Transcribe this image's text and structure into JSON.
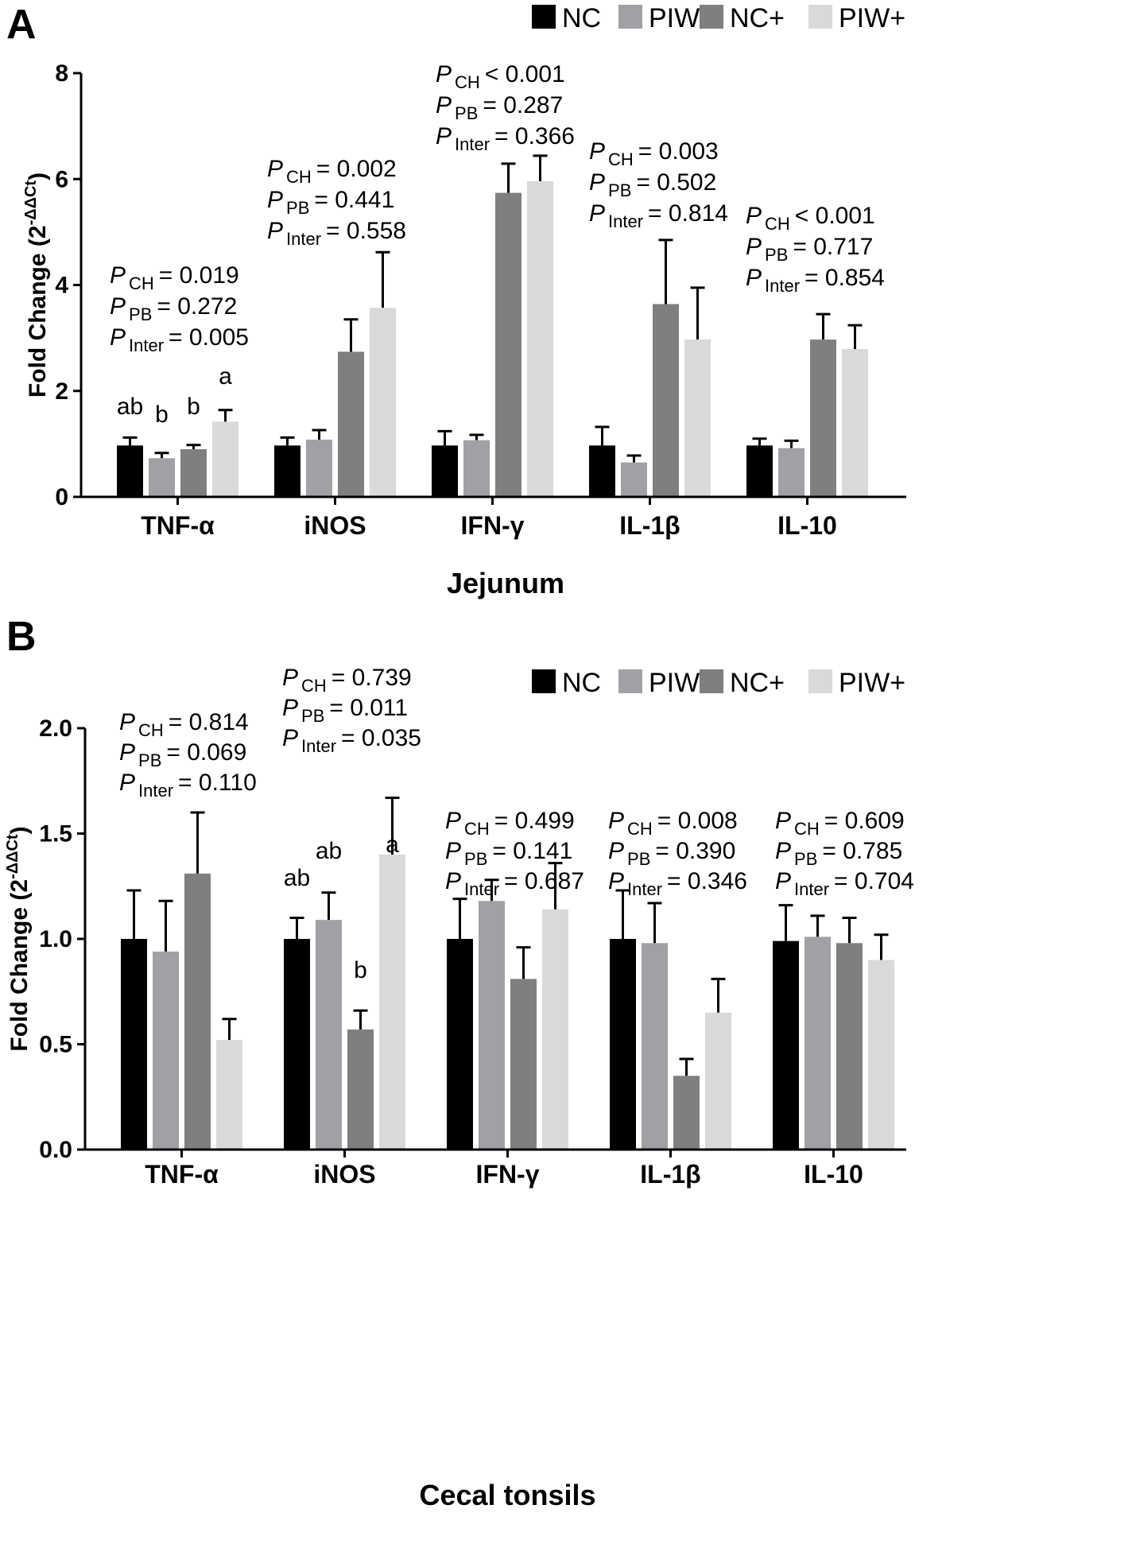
{
  "figure": {
    "series_names": [
      "NC",
      "PIW",
      "NC+",
      "PIW+"
    ],
    "series_colors": [
      "#000000",
      "#a0a0a5",
      "#7f7f7f",
      "#d9d9d9"
    ]
  },
  "chart_data": [
    {
      "type": "bar",
      "panel_letter": "A",
      "title": "",
      "xlabel": "Jejunum",
      "ylabel_main": "Fold Change (2",
      "ylabel_sup": "-ΔΔCt",
      "ylabel_close": ")",
      "legend_position": "top-right",
      "ylim": [
        0,
        8
      ],
      "yticks": [
        0,
        2,
        4,
        6,
        8
      ],
      "ytick_labels": [
        "0",
        "2",
        "4",
        "6",
        "8"
      ],
      "categories": [
        "TNF-α",
        "iNOS",
        "IFN-γ",
        "IL-1β",
        "IL-10"
      ],
      "series": [
        {
          "name": "NC",
          "values": [
            0.97,
            0.97,
            0.97,
            0.97,
            0.97
          ],
          "errors": [
            0.15,
            0.15,
            0.27,
            0.35,
            0.13
          ]
        },
        {
          "name": "PIW",
          "values": [
            0.73,
            1.08,
            1.07,
            0.65,
            0.92
          ],
          "errors": [
            0.1,
            0.18,
            0.1,
            0.13,
            0.14
          ]
        },
        {
          "name": "NC+",
          "values": [
            0.9,
            2.74,
            5.74,
            3.64,
            2.97
          ],
          "errors": [
            0.08,
            0.61,
            0.55,
            1.21,
            0.48
          ]
        },
        {
          "name": "PIW+",
          "values": [
            1.42,
            3.57,
            5.96,
            2.97,
            2.79
          ],
          "errors": [
            0.22,
            1.05,
            0.48,
            0.98,
            0.45
          ]
        }
      ],
      "significance_letters": [
        [
          "ab",
          "b",
          "b",
          "a"
        ],
        [
          "",
          "",
          "",
          ""
        ],
        [
          "",
          "",
          "",
          ""
        ],
        [
          "",
          "",
          "",
          ""
        ],
        [
          "",
          "",
          "",
          ""
        ]
      ],
      "annotations": [
        {
          "category": "TNF-α",
          "lines": [
            {
              "name": "P",
              "sub": "CH",
              "rest": "= 0.019"
            },
            {
              "name": "P",
              "sub": "PB",
              "rest": "= 0.272"
            },
            {
              "name": "P",
              "sub": "Inter",
              "rest": "= 0.005"
            }
          ]
        },
        {
          "category": "iNOS",
          "lines": [
            {
              "name": "P",
              "sub": "CH",
              "rest": "= 0.002"
            },
            {
              "name": "P",
              "sub": "PB",
              "rest": "= 0.441"
            },
            {
              "name": "P",
              "sub": "Inter",
              "rest": "= 0.558"
            }
          ]
        },
        {
          "category": "IFN-γ",
          "lines": [
            {
              "name": "P",
              "sub": "CH",
              "rest": "< 0.001"
            },
            {
              "name": "P",
              "sub": "PB",
              "rest": "= 0.287"
            },
            {
              "name": "P",
              "sub": "Inter",
              "rest": "= 0.366"
            }
          ]
        },
        {
          "category": "IL-1β",
          "lines": [
            {
              "name": "P",
              "sub": "CH",
              "rest": "= 0.003"
            },
            {
              "name": "P",
              "sub": "PB",
              "rest": "= 0.502"
            },
            {
              "name": "P",
              "sub": "Inter",
              "rest": "= 0.814"
            }
          ]
        },
        {
          "category": "IL-10",
          "lines": [
            {
              "name": "P",
              "sub": "CH",
              "rest": "< 0.001"
            },
            {
              "name": "P",
              "sub": "PB",
              "rest": "= 0.717"
            },
            {
              "name": "P",
              "sub": "Inter",
              "rest": "= 0.854"
            }
          ]
        }
      ]
    },
    {
      "type": "bar",
      "panel_letter": "B",
      "title": "",
      "xlabel": "Cecal tonsils",
      "ylabel_main": "Fold Change (2",
      "ylabel_sup": "-ΔΔCt",
      "ylabel_close": ")",
      "legend_position": "top-right",
      "ylim": [
        0,
        2
      ],
      "yticks": [
        0,
        0.5,
        1,
        1.5,
        2
      ],
      "ytick_labels": [
        "0.0",
        "0.5",
        "1.0",
        "1.5",
        "2.0"
      ],
      "categories": [
        "TNF-α",
        "iNOS",
        "IFN-γ",
        "IL-1β",
        "IL-10"
      ],
      "series": [
        {
          "name": "NC",
          "values": [
            1.0,
            1.0,
            1.0,
            1.0,
            0.99
          ],
          "errors": [
            0.23,
            0.1,
            0.19,
            0.23,
            0.17
          ]
        },
        {
          "name": "PIW",
          "values": [
            0.94,
            1.09,
            1.18,
            0.98,
            1.01
          ],
          "errors": [
            0.24,
            0.13,
            0.1,
            0.19,
            0.1
          ]
        },
        {
          "name": "NC+",
          "values": [
            1.31,
            0.57,
            0.81,
            0.35,
            0.98
          ],
          "errors": [
            0.29,
            0.09,
            0.15,
            0.08,
            0.12
          ]
        },
        {
          "name": "PIW+",
          "values": [
            0.52,
            1.4,
            1.14,
            0.65,
            0.9
          ],
          "errors": [
            0.1,
            0.27,
            0.22,
            0.16,
            0.12
          ]
        }
      ],
      "significance_letters": [
        [
          "",
          "",
          "",
          ""
        ],
        [
          "ab",
          "ab",
          "b",
          "a"
        ],
        [
          "",
          "",
          "",
          ""
        ],
        [
          "",
          "",
          "",
          ""
        ],
        [
          "",
          "",
          "",
          ""
        ]
      ],
      "annotations": [
        {
          "category": "TNF-α",
          "lines": [
            {
              "name": "P",
              "sub": "CH",
              "rest": "= 0.814"
            },
            {
              "name": "P",
              "sub": "PB",
              "rest": "= 0.069"
            },
            {
              "name": "P",
              "sub": "Inter",
              "rest": "= 0.110"
            }
          ]
        },
        {
          "category": "iNOS",
          "lines": [
            {
              "name": "P",
              "sub": "CH",
              "rest": "= 0.739"
            },
            {
              "name": "P",
              "sub": "PB",
              "rest": "= 0.011"
            },
            {
              "name": "P",
              "sub": "Inter",
              "rest": "= 0.035"
            }
          ]
        },
        {
          "category": "IFN-γ",
          "lines": [
            {
              "name": "P",
              "sub": "CH",
              "rest": "= 0.499"
            },
            {
              "name": "P",
              "sub": "PB",
              "rest": "= 0.141"
            },
            {
              "name": "P",
              "sub": "Inter",
              "rest": "= 0.687"
            }
          ]
        },
        {
          "category": "IL-1β",
          "lines": [
            {
              "name": "P",
              "sub": "CH",
              "rest": "= 0.008"
            },
            {
              "name": "P",
              "sub": "PB",
              "rest": "= 0.390"
            },
            {
              "name": "P",
              "sub": "Inter",
              "rest": "= 0.346"
            }
          ]
        },
        {
          "category": "IL-10",
          "lines": [
            {
              "name": "P",
              "sub": "CH",
              "rest": "= 0.609"
            },
            {
              "name": "P",
              "sub": "PB",
              "rest": "= 0.785"
            },
            {
              "name": "P",
              "sub": "Inter",
              "rest": "= 0.704"
            }
          ]
        }
      ]
    }
  ]
}
